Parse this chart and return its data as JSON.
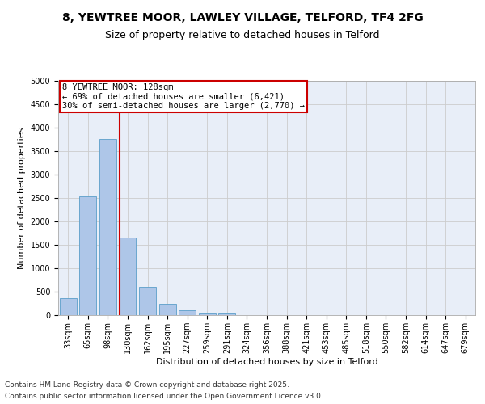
{
  "title_line1": "8, YEWTREE MOOR, LAWLEY VILLAGE, TELFORD, TF4 2FG",
  "title_line2": "Size of property relative to detached houses in Telford",
  "xlabel": "Distribution of detached houses by size in Telford",
  "ylabel": "Number of detached properties",
  "categories": [
    "33sqm",
    "65sqm",
    "98sqm",
    "130sqm",
    "162sqm",
    "195sqm",
    "227sqm",
    "259sqm",
    "291sqm",
    "324sqm",
    "356sqm",
    "388sqm",
    "421sqm",
    "453sqm",
    "485sqm",
    "518sqm",
    "550sqm",
    "582sqm",
    "614sqm",
    "647sqm",
    "679sqm"
  ],
  "values": [
    370,
    2540,
    3760,
    1660,
    610,
    245,
    110,
    55,
    50,
    0,
    0,
    0,
    0,
    0,
    0,
    0,
    0,
    0,
    0,
    0,
    0
  ],
  "bar_color": "#aec6e8",
  "bar_edgecolor": "#5a9ec9",
  "vline_color": "#cc0000",
  "annotation_text": "8 YEWTREE MOOR: 128sqm\n← 69% of detached houses are smaller (6,421)\n30% of semi-detached houses are larger (2,770) →",
  "annotation_box_edgecolor": "#cc0000",
  "annotation_box_facecolor": "#ffffff",
  "ylim": [
    0,
    5000
  ],
  "yticks": [
    0,
    500,
    1000,
    1500,
    2000,
    2500,
    3000,
    3500,
    4000,
    4500,
    5000
  ],
  "grid_color": "#cccccc",
  "bg_color": "#e8eef8",
  "footer_line1": "Contains HM Land Registry data © Crown copyright and database right 2025.",
  "footer_line2": "Contains public sector information licensed under the Open Government Licence v3.0.",
  "title_fontsize": 10,
  "subtitle_fontsize": 9,
  "label_fontsize": 8,
  "tick_fontsize": 7,
  "annot_fontsize": 7.5,
  "footer_fontsize": 6.5
}
